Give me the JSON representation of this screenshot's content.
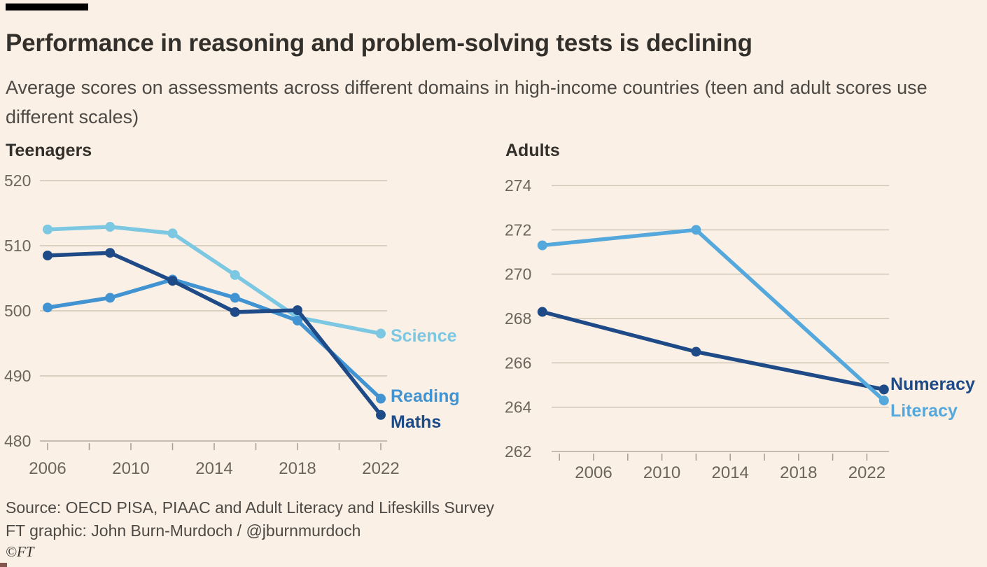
{
  "page": {
    "background": "#FAF0E5",
    "top_bar_color": "#000000",
    "title": "Performance in reasoning and problem-solving tests is declining",
    "subtitle": "Average scores on assessments across different domains in high-income countries (teen and adult scores use different scales)",
    "footer": {
      "source": "Source: OECD PISA, PIAAC and Adult Literacy and Lifeskills Survey",
      "credit": "FT graphic: John Burn-Murdoch / @jburnmurdoch",
      "copyright": "©FT"
    }
  },
  "colors": {
    "science": "#7CC7E2",
    "reading": "#4193D1",
    "maths": "#1E4B87",
    "literacy": "#55A8DC",
    "numeracy": "#1E4B87",
    "gridline": "#CFC5B6",
    "axis_bottom_line": "#B5AB9D",
    "tick": "#A69C8F",
    "axis_text": "#6B655C",
    "title_text": "#33302C",
    "body_text": "#4D4945"
  },
  "chart_data": [
    {
      "type": "line",
      "title": "Teenagers",
      "x": [
        2006,
        2009,
        2012,
        2015,
        2018,
        2022
      ],
      "series": [
        {
          "name": "Science",
          "color": "#7CC7E2",
          "values": [
            512.5,
            512.9,
            511.9,
            505.5,
            499.0,
            496.5
          ]
        },
        {
          "name": "Reading",
          "color": "#4193D1",
          "values": [
            500.5,
            502.0,
            504.8,
            502.0,
            498.5,
            486.5
          ]
        },
        {
          "name": "Maths",
          "color": "#1E4B87",
          "values": [
            508.5,
            508.9,
            504.6,
            499.8,
            500.1,
            484.0
          ]
        }
      ],
      "ylim": [
        480,
        520
      ],
      "yticks": [
        520,
        510,
        500,
        490,
        480
      ],
      "x_axis_labels": [
        2006,
        2010,
        2014,
        2018,
        2022
      ],
      "grid": "horizontal only",
      "legend_position": "end-of-line labels"
    },
    {
      "type": "line",
      "title": "Adults",
      "x": [
        2003,
        2012,
        2023
      ],
      "series": [
        {
          "name": "Numeracy",
          "color": "#1E4B87",
          "values": [
            268.3,
            266.5,
            264.8
          ]
        },
        {
          "name": "Literacy",
          "color": "#55A8DC",
          "values": [
            271.3,
            272.0,
            264.3
          ]
        }
      ],
      "ylim": [
        262,
        274
      ],
      "yticks": [
        274,
        272,
        270,
        268,
        266,
        264,
        262
      ],
      "x_axis_labels": [
        2006,
        2010,
        2014,
        2018,
        2022
      ],
      "grid": "horizontal only",
      "legend_position": "end-of-line labels"
    }
  ]
}
